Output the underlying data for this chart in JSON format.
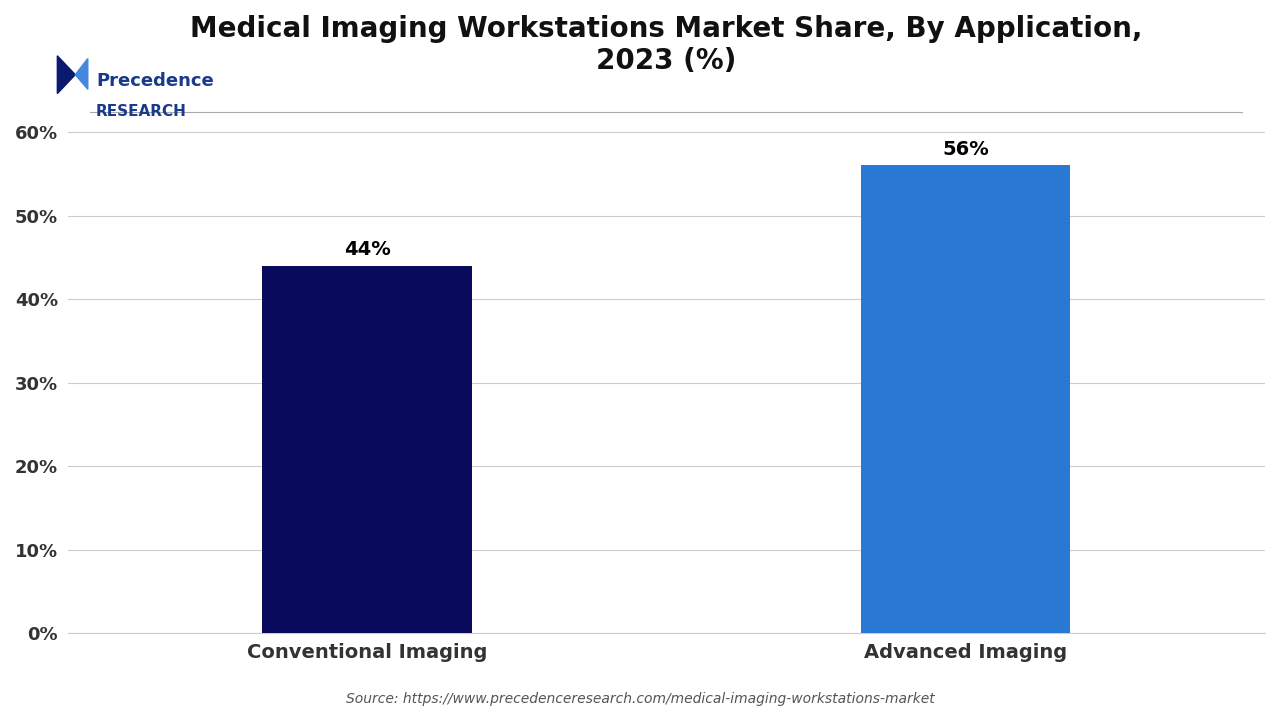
{
  "title": "Medical Imaging Workstations Market Share, By Application,\n2023 (%)",
  "categories": [
    "Conventional Imaging",
    "Advanced Imaging"
  ],
  "values": [
    44,
    56
  ],
  "bar_colors": [
    "#0a0a5c",
    "#2979d4"
  ],
  "ylabel_ticks": [
    "0%",
    "10%",
    "20%",
    "30%",
    "40%",
    "50%",
    "60%"
  ],
  "ytick_values": [
    0,
    10,
    20,
    30,
    40,
    50,
    60
  ],
  "ylim": [
    0,
    65
  ],
  "bar_labels": [
    "44%",
    "56%"
  ],
  "source_text": "Source: https://www.precedenceresearch.com/medical-imaging-workstations-market",
  "background_color": "#ffffff",
  "title_fontsize": 20,
  "tick_fontsize": 13,
  "label_fontsize": 14,
  "bar_label_fontsize": 14,
  "logo_text_line1": "Precedence",
  "logo_text_line2": "RESEARCH",
  "bar_width": 0.35
}
